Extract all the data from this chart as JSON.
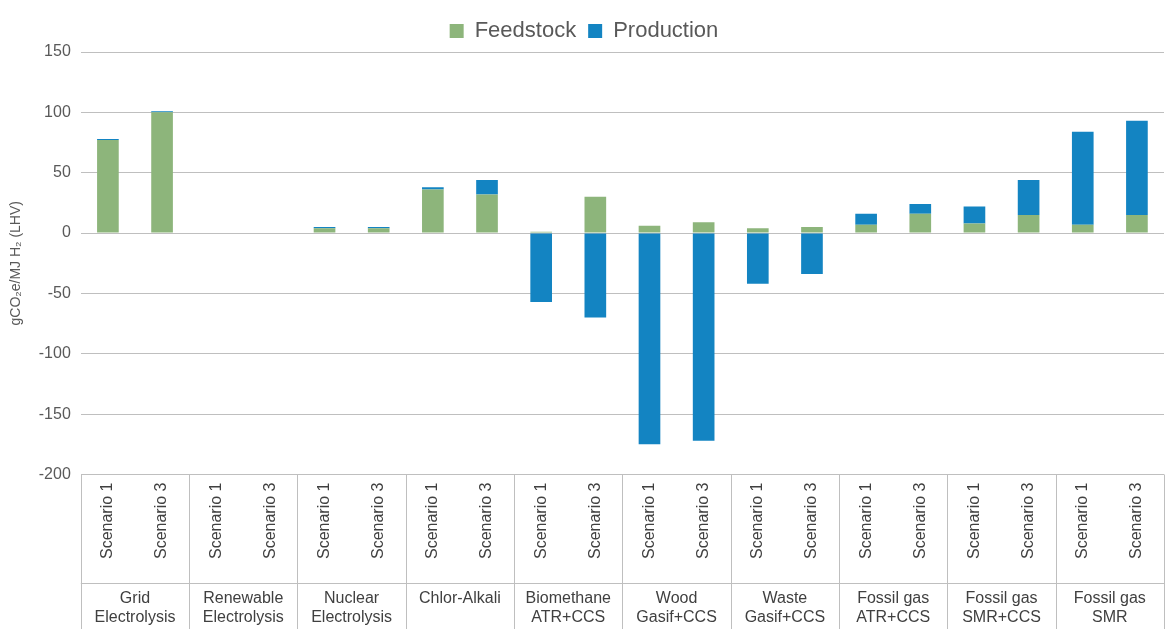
{
  "chart_data": {
    "type": "bar",
    "stacked": true,
    "ylabel": "gCO₂e/MJ H₂ (LHV)",
    "categories": [
      "Scenario 1",
      "Scenario 3",
      "Scenario 1",
      "Scenario 3",
      "Scenario 1",
      "Scenario 3",
      "Scenario 1",
      "Scenario 3",
      "Scenario 1",
      "Scenario 3",
      "Scenario 1",
      "Scenario 3",
      "Scenario 1",
      "Scenario 3",
      "Scenario 1",
      "Scenario 3",
      "Scenario 1",
      "Scenario 3",
      "Scenario 1",
      "Scenario 3"
    ],
    "annotations": [
      "Grid Electrolysis",
      "Renewable Electrolysis",
      "Nuclear Electrolysis",
      "Chlor-Alkali",
      "Biomethane ATR+CCS",
      "Wood Gasif+CCS",
      "Waste Gasif+CCS",
      "Fossil gas ATR+CCS",
      "Fossil gas SMR+CCS",
      "Fossil gas SMR"
    ],
    "series": [
      {
        "name": "Feedstock",
        "color": "#8db57b",
        "values": [
          77,
          100,
          0,
          0,
          4,
          4,
          36,
          32,
          1,
          30,
          6,
          9,
          4,
          5,
          7,
          16,
          8,
          15,
          7,
          15
        ]
      },
      {
        "name": "Production",
        "color": "#1384c2",
        "values": [
          1,
          1,
          0,
          0,
          1,
          1,
          2,
          12,
          -57,
          -70,
          -175,
          -172,
          -42,
          -34,
          9,
          8,
          14,
          29,
          77,
          78
        ]
      }
    ],
    "ylim": [
      -200,
      150
    ],
    "yticks": [
      -200,
      -150,
      -100,
      -50,
      0,
      50,
      100,
      150
    ],
    "grid": "y",
    "legend": "top"
  }
}
